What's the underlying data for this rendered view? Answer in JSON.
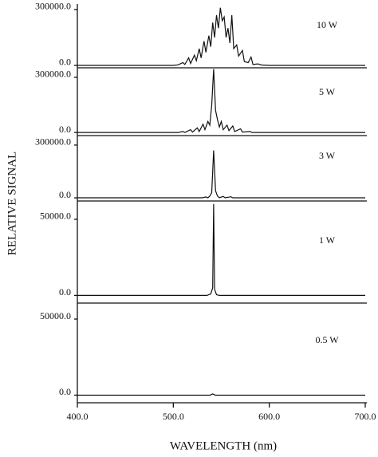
{
  "figure": {
    "y_label": "RELATIVE SIGNAL",
    "x_label": "WAVELENGTH (nm)",
    "xlim": [
      400,
      700
    ],
    "xticks": [
      {
        "value": 400,
        "label": "400.0"
      },
      {
        "value": 500,
        "label": "500.0"
      },
      {
        "value": 600,
        "label": "600.0"
      },
      {
        "value": 700,
        "label": "700.0"
      }
    ]
  },
  "chart_data": [
    {
      "type": "line",
      "label": "10 W",
      "color": "#111111",
      "ylim": [
        -13000,
        330000
      ],
      "yticks": [
        {
          "value": 0,
          "label": "0.0"
        },
        {
          "value": 300000,
          "label": "300000.0"
        }
      ],
      "x": [
        400,
        500,
        505,
        510,
        512,
        516,
        518,
        522,
        524,
        527,
        529,
        532,
        534,
        537,
        539,
        541,
        543,
        545,
        547,
        549,
        551,
        553,
        555,
        557,
        559,
        561,
        563,
        566,
        568,
        572,
        574,
        578,
        581,
        583,
        588,
        592,
        600,
        700
      ],
      "values": [
        0,
        0,
        3000,
        15000,
        5000,
        40000,
        10000,
        55000,
        25000,
        90000,
        40000,
        130000,
        70000,
        160000,
        100000,
        230000,
        150000,
        270000,
        200000,
        310000,
        240000,
        260000,
        150000,
        200000,
        120000,
        270000,
        90000,
        110000,
        50000,
        80000,
        20000,
        15000,
        45000,
        5000,
        8000,
        2000,
        0,
        0
      ]
    },
    {
      "type": "line",
      "label": "5 W",
      "color": "#111111",
      "ylim": [
        -17000,
        352000
      ],
      "yticks": [
        {
          "value": 0,
          "label": "0.0"
        },
        {
          "value": 300000,
          "label": "300000.0"
        }
      ],
      "x": [
        400,
        505,
        510,
        512,
        518,
        520,
        525,
        527,
        531,
        533,
        536,
        538,
        540,
        542,
        544,
        546,
        548,
        550,
        552,
        556,
        558,
        562,
        564,
        570,
        572,
        580,
        582,
        700
      ],
      "values": [
        0,
        0,
        5000,
        0,
        15000,
        2000,
        25000,
        5000,
        45000,
        15000,
        60000,
        40000,
        150000,
        345000,
        120000,
        70000,
        30000,
        60000,
        15000,
        40000,
        10000,
        35000,
        5000,
        20000,
        2000,
        5000,
        0,
        0
      ]
    },
    {
      "type": "line",
      "label": "3 W",
      "color": "#111111",
      "ylim": [
        -18000,
        354000
      ],
      "yticks": [
        {
          "value": 0,
          "label": "0.0"
        },
        {
          "value": 300000,
          "label": "300000.0"
        }
      ],
      "x": [
        400,
        530,
        534,
        536,
        538,
        540,
        542,
        544,
        546,
        548,
        552,
        554,
        560,
        562,
        700
      ],
      "values": [
        0,
        0,
        5000,
        0,
        10000,
        30000,
        270000,
        40000,
        10000,
        0,
        8000,
        0,
        6000,
        0,
        0
      ]
    },
    {
      "type": "line",
      "label": "1 W",
      "color": "#111111",
      "ylim": [
        -5000,
        62000
      ],
      "yticks": [
        {
          "value": 0,
          "label": "0.0"
        },
        {
          "value": 50000,
          "label": "50000.0"
        }
      ],
      "x": [
        400,
        535,
        539,
        541,
        542,
        543,
        545,
        548,
        700
      ],
      "values": [
        0,
        0,
        1000,
        5000,
        60000,
        4000,
        500,
        0,
        0
      ]
    },
    {
      "type": "line",
      "label": "0.5 W",
      "color": "#111111",
      "ylim": [
        -5000,
        60500
      ],
      "yticks": [
        {
          "value": 0,
          "label": "0.0"
        },
        {
          "value": 50000,
          "label": "50000.0"
        }
      ],
      "x": [
        400,
        538,
        541,
        544,
        700
      ],
      "values": [
        0,
        0,
        800,
        0,
        0
      ]
    }
  ]
}
